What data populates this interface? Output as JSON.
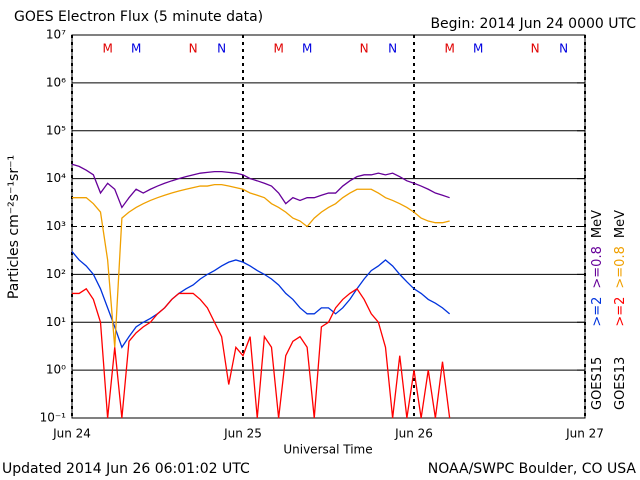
{
  "chart_data": {
    "type": "line",
    "title": "GOES Electron Flux (5 minute data)",
    "subtitle": "Begin: 2014 Jun 24 0000 UTC",
    "ylabel": "Particles cm⁻²s⁻¹sr⁻¹",
    "xlabel": "Universal Time",
    "footer_left": "Updated 2014 Jun 26 06:01:02 UTC",
    "footer_right": "NOAA/SWPC Boulder, CO USA",
    "log_y": true,
    "grid": true,
    "threshold": 1000,
    "xlim": [
      0,
      72
    ],
    "xticks": [
      {
        "value": 0,
        "label": "Jun 24"
      },
      {
        "value": 24,
        "label": "Jun 25"
      },
      {
        "value": 48,
        "label": "Jun 26"
      },
      {
        "value": 72,
        "label": "Jun 27"
      }
    ],
    "ylim": [
      0.1,
      10000000
    ],
    "yticks": [
      {
        "value": 0.1,
        "label": "10⁻¹"
      },
      {
        "value": 1,
        "label": "10⁰"
      },
      {
        "value": 10,
        "label": "10¹"
      },
      {
        "value": 100,
        "label": "10²"
      },
      {
        "value": 1000,
        "label": "10³"
      },
      {
        "value": 10000,
        "label": "10⁴"
      },
      {
        "value": 100000,
        "label": "10⁵"
      },
      {
        "value": 1000000,
        "label": "10⁶"
      },
      {
        "value": 10000000,
        "label": "10⁷"
      }
    ],
    "satellites": [
      "GOES15",
      "GOES13"
    ],
    "unit_label": "MeV",
    "annotations": [
      {
        "label": "M",
        "x": 5,
        "color": "#e00000"
      },
      {
        "label": "M",
        "x": 9,
        "color": "#0000e0"
      },
      {
        "label": "N",
        "x": 17,
        "color": "#e00000"
      },
      {
        "label": "N",
        "x": 21,
        "color": "#0000e0"
      },
      {
        "label": "M",
        "x": 29,
        "color": "#e00000"
      },
      {
        "label": "M",
        "x": 33,
        "color": "#0000e0"
      },
      {
        "label": "N",
        "x": 41,
        "color": "#e00000"
      },
      {
        "label": "N",
        "x": 45,
        "color": "#0000e0"
      },
      {
        "label": "M",
        "x": 53,
        "color": "#e00000"
      },
      {
        "label": "M",
        "x": 57,
        "color": "#0000e0"
      },
      {
        "label": "N",
        "x": 65,
        "color": "#e00000"
      },
      {
        "label": "N",
        "x": 69,
        "color": "#0000e0"
      }
    ],
    "x": [
      0,
      1,
      2,
      3,
      4,
      5,
      6,
      7,
      8,
      9,
      10,
      11,
      12,
      13,
      14,
      15,
      16,
      17,
      18,
      19,
      20,
      21,
      22,
      23,
      24,
      25,
      26,
      27,
      28,
      29,
      30,
      31,
      32,
      33,
      34,
      35,
      36,
      37,
      38,
      39,
      40,
      41,
      42,
      43,
      44,
      45,
      46,
      47,
      48,
      49,
      50,
      51,
      52,
      53
    ],
    "series": [
      {
        "name": ">=0.8",
        "color": "#660099",
        "values": [
          20000,
          18000,
          15000,
          12000,
          5000,
          8000,
          6000,
          2500,
          4000,
          6000,
          5000,
          6000,
          7000,
          8000,
          9000,
          10000,
          11000,
          12000,
          13000,
          13500,
          14000,
          14000,
          13500,
          13000,
          12000,
          10000,
          9000,
          8000,
          7000,
          5000,
          3000,
          4000,
          3500,
          4000,
          4000,
          4500,
          5000,
          5000,
          7000,
          9000,
          11000,
          12000,
          12000,
          13000,
          12000,
          13000,
          11000,
          9000,
          8000,
          7000,
          6000,
          5000,
          4500,
          4000
        ]
      },
      {
        "name": ">=2",
        "color": "#0033dd",
        "values": [
          300,
          200,
          150,
          100,
          50,
          20,
          8,
          3,
          5,
          8,
          10,
          12,
          15,
          20,
          30,
          40,
          50,
          60,
          80,
          100,
          120,
          150,
          180,
          200,
          180,
          150,
          120,
          100,
          80,
          60,
          40,
          30,
          20,
          15,
          15,
          20,
          20,
          15,
          20,
          30,
          50,
          80,
          120,
          150,
          200,
          150,
          100,
          70,
          50,
          40,
          30,
          25,
          20,
          15
        ]
      },
      {
        "name": ">=0.8",
        "color": "#f0a000",
        "values": [
          4000,
          4000,
          4000,
          3000,
          2000,
          200,
          3,
          1500,
          2000,
          2500,
          3000,
          3500,
          4000,
          4500,
          5000,
          5500,
          6000,
          6500,
          7000,
          7000,
          7500,
          7500,
          7000,
          6500,
          6000,
          5000,
          4500,
          4000,
          3000,
          2500,
          2000,
          1500,
          1300,
          1000,
          1500,
          2000,
          2500,
          3000,
          4000,
          5000,
          6000,
          6000,
          6000,
          5000,
          4000,
          3500,
          3000,
          2500,
          2000,
          1500,
          1300,
          1200,
          1200,
          1300
        ]
      },
      {
        "name": ">=2",
        "color": "#ff0000",
        "values": [
          40,
          40,
          50,
          30,
          10,
          0.1,
          3,
          0.1,
          4,
          6,
          8,
          10,
          15,
          20,
          30,
          40,
          40,
          40,
          30,
          20,
          10,
          5,
          0.5,
          3,
          2,
          5,
          0.1,
          5,
          3,
          0.1,
          2,
          4,
          5,
          3,
          0.1,
          8,
          10,
          20,
          30,
          40,
          50,
          30,
          15,
          10,
          3,
          0.1,
          2,
          0.1,
          1,
          0.1,
          1,
          0.1,
          1.5,
          0.1
        ]
      }
    ]
  }
}
